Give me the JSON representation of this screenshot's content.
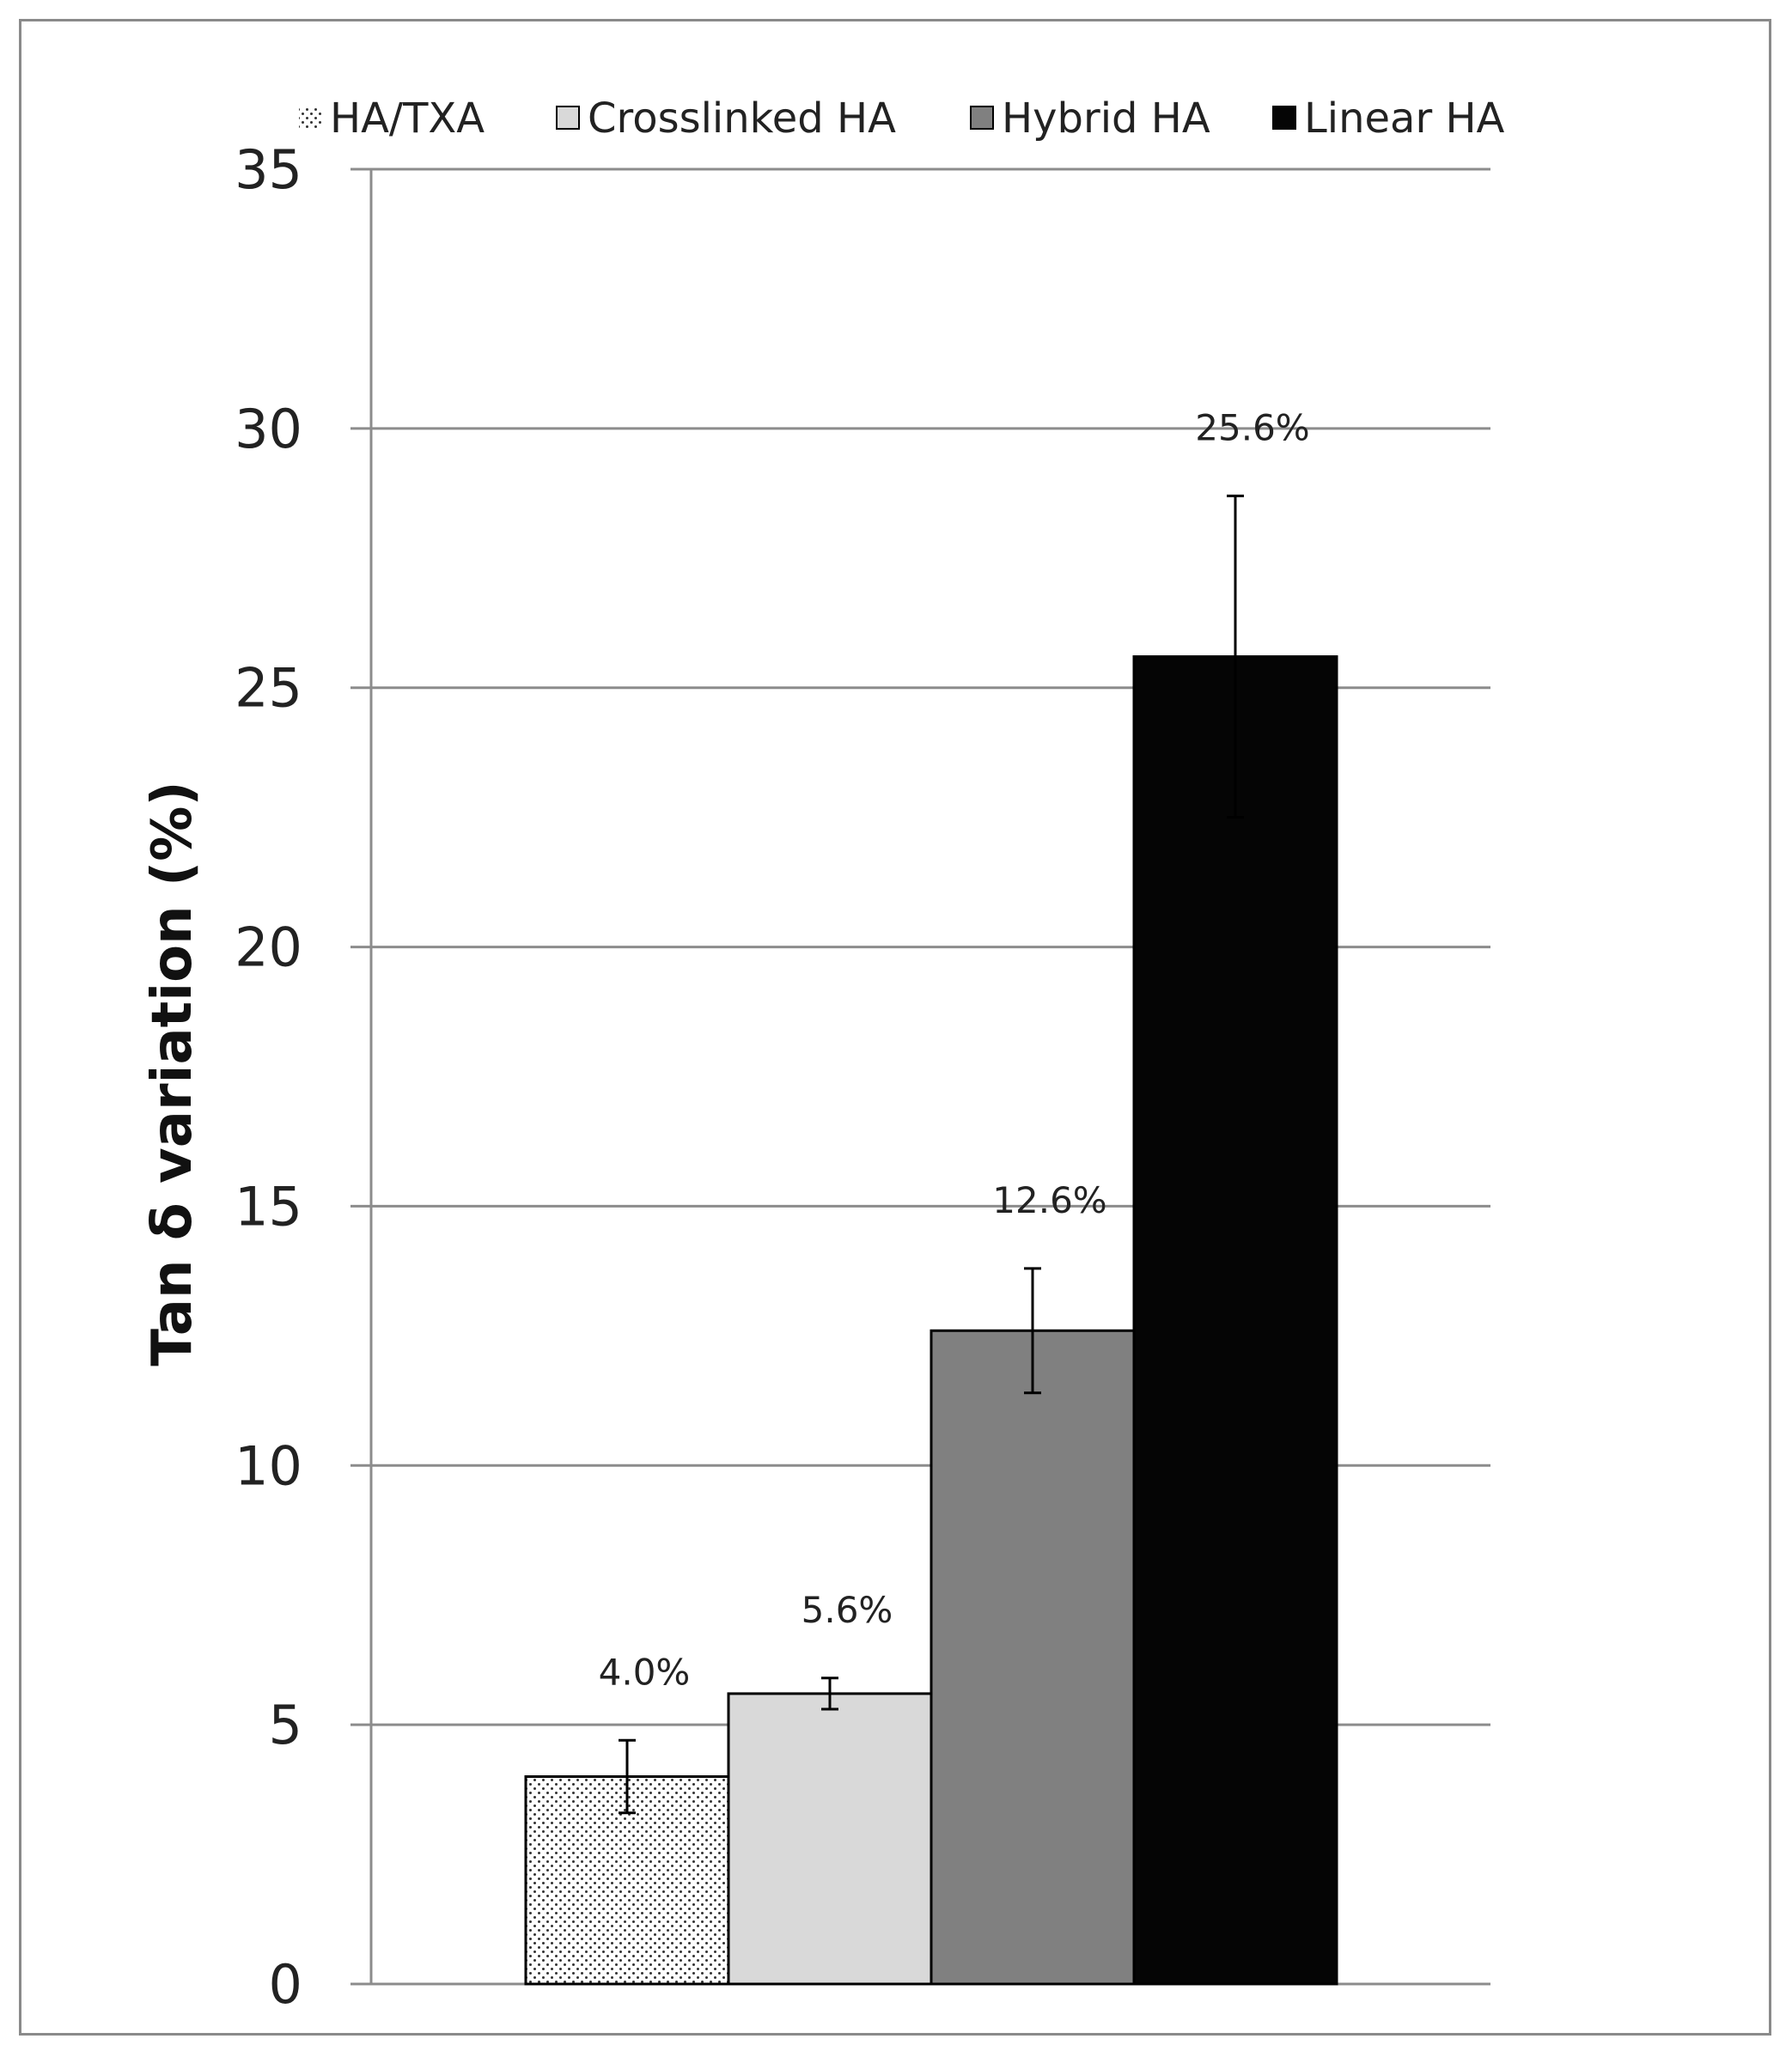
{
  "chart_data": {
    "type": "bar",
    "title": "",
    "xlabel": "",
    "ylabel": "Tan δ variation (%)",
    "ylim": [
      0,
      35
    ],
    "yticks": [
      0,
      5,
      10,
      15,
      20,
      25,
      30,
      35
    ],
    "grid": true,
    "legend_position": "top",
    "categories": [
      "HA/TXA",
      "Crosslinked HA",
      "Hybrid HA",
      "Linear HA"
    ],
    "values": [
      4.0,
      5.6,
      12.6,
      25.6
    ],
    "errors": [
      0.7,
      0.3,
      1.2,
      3.1
    ],
    "data_labels": [
      "4.0%",
      "5.6%",
      "12.6%",
      "25.6%"
    ],
    "series": [
      {
        "name": "HA/TXA",
        "value": 4.0,
        "fill": "dotted",
        "color": "#ffffff"
      },
      {
        "name": "Crosslinked HA",
        "value": 5.6,
        "fill": "solid",
        "color": "#d9d9d9"
      },
      {
        "name": "Hybrid HA",
        "value": 12.6,
        "fill": "solid",
        "color": "#808080"
      },
      {
        "name": "Linear HA",
        "value": 25.6,
        "fill": "solid",
        "color": "#050505"
      }
    ]
  }
}
